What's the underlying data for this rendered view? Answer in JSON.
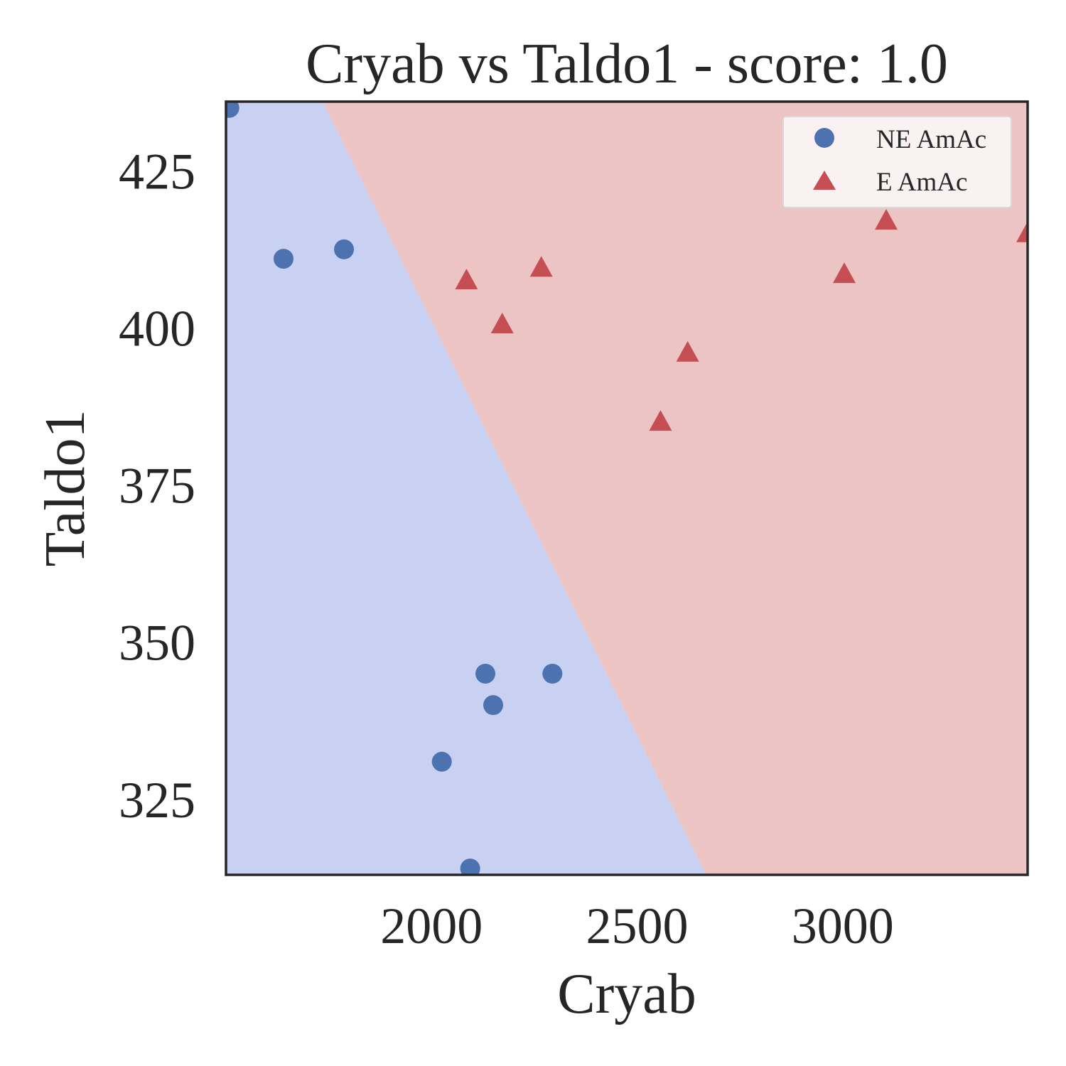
{
  "chart_data": {
    "type": "scatter",
    "title": "Cryab vs Taldo1 - score: 1.0",
    "xlabel": "Cryab",
    "ylabel": "Taldo1",
    "xlim": [
      1500,
      3450
    ],
    "ylim": [
      313,
      436
    ],
    "xticks": [
      2000,
      2500,
      3000
    ],
    "yticks": [
      325,
      350,
      375,
      400,
      425
    ],
    "grid": false,
    "legend_position": "top-right",
    "decision_boundary": {
      "points": [
        [
          1735,
          436
        ],
        [
          2668,
          313
        ]
      ],
      "left_class": "NE AmAc",
      "right_class": "E AmAc"
    },
    "series": [
      {
        "name": "NE AmAc",
        "marker": "circle",
        "color": "#4c72b0",
        "region_color": "#c8d1f1",
        "points": [
          [
            1508,
            435
          ],
          [
            1640,
            411
          ],
          [
            1787,
            412.5
          ],
          [
            2025,
            331
          ],
          [
            2094,
            314
          ],
          [
            2131,
            345
          ],
          [
            2150,
            340
          ],
          [
            2294,
            345
          ]
        ]
      },
      {
        "name": "E AmAc",
        "marker": "triangle",
        "color": "#c44e52",
        "region_color": "#edc4c4",
        "points": [
          [
            2085,
            407.5
          ],
          [
            2172,
            400.5
          ],
          [
            2267,
            409.5
          ],
          [
            2557,
            385
          ],
          [
            2623,
            396
          ],
          [
            3004,
            408.5
          ],
          [
            3106,
            417
          ],
          [
            3450,
            415
          ]
        ]
      }
    ]
  }
}
